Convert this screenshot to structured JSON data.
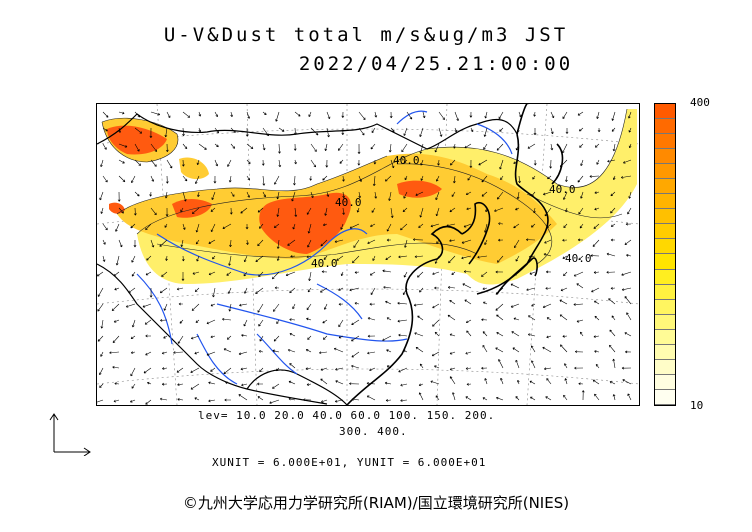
{
  "title": {
    "line1": "U-V&Dust total m/s&ug/m3 JST",
    "line2": "2022/04/25.21:00:00"
  },
  "legend": {
    "max_label": "400",
    "min_label": "10",
    "colors": [
      "#ff5a00",
      "#ff6a00",
      "#ff7800",
      "#ff8a00",
      "#ff9800",
      "#ffa800",
      "#ffb400",
      "#ffc000",
      "#ffcc00",
      "#ffd800",
      "#ffe400",
      "#ffee20",
      "#fff240",
      "#fff560",
      "#fff87a",
      "#fffb96",
      "#fffcb0",
      "#fffdc8",
      "#fffee0",
      "#fffff0"
    ]
  },
  "contour_labels": [
    "40.0",
    "40.0",
    "40.0",
    "40.0",
    "40.0"
  ],
  "levels": {
    "line1": "lev= 10.0 20.0 40.0 60.0 100. 150. 200.",
    "line2": "300. 400."
  },
  "units": "XUNIT = 6.000E+01, YUNIT = 6.000E+01",
  "credit": "©九州大学応用力学研究所(RIAM)/国立環境研究所(NIES)",
  "map_colors": {
    "high": "#ff5a10",
    "mid": "#ffcc33",
    "low": "#ffef6a",
    "faint": "#fffab0",
    "coast": "#000000",
    "river": "#2255ee",
    "border": "#000000"
  }
}
